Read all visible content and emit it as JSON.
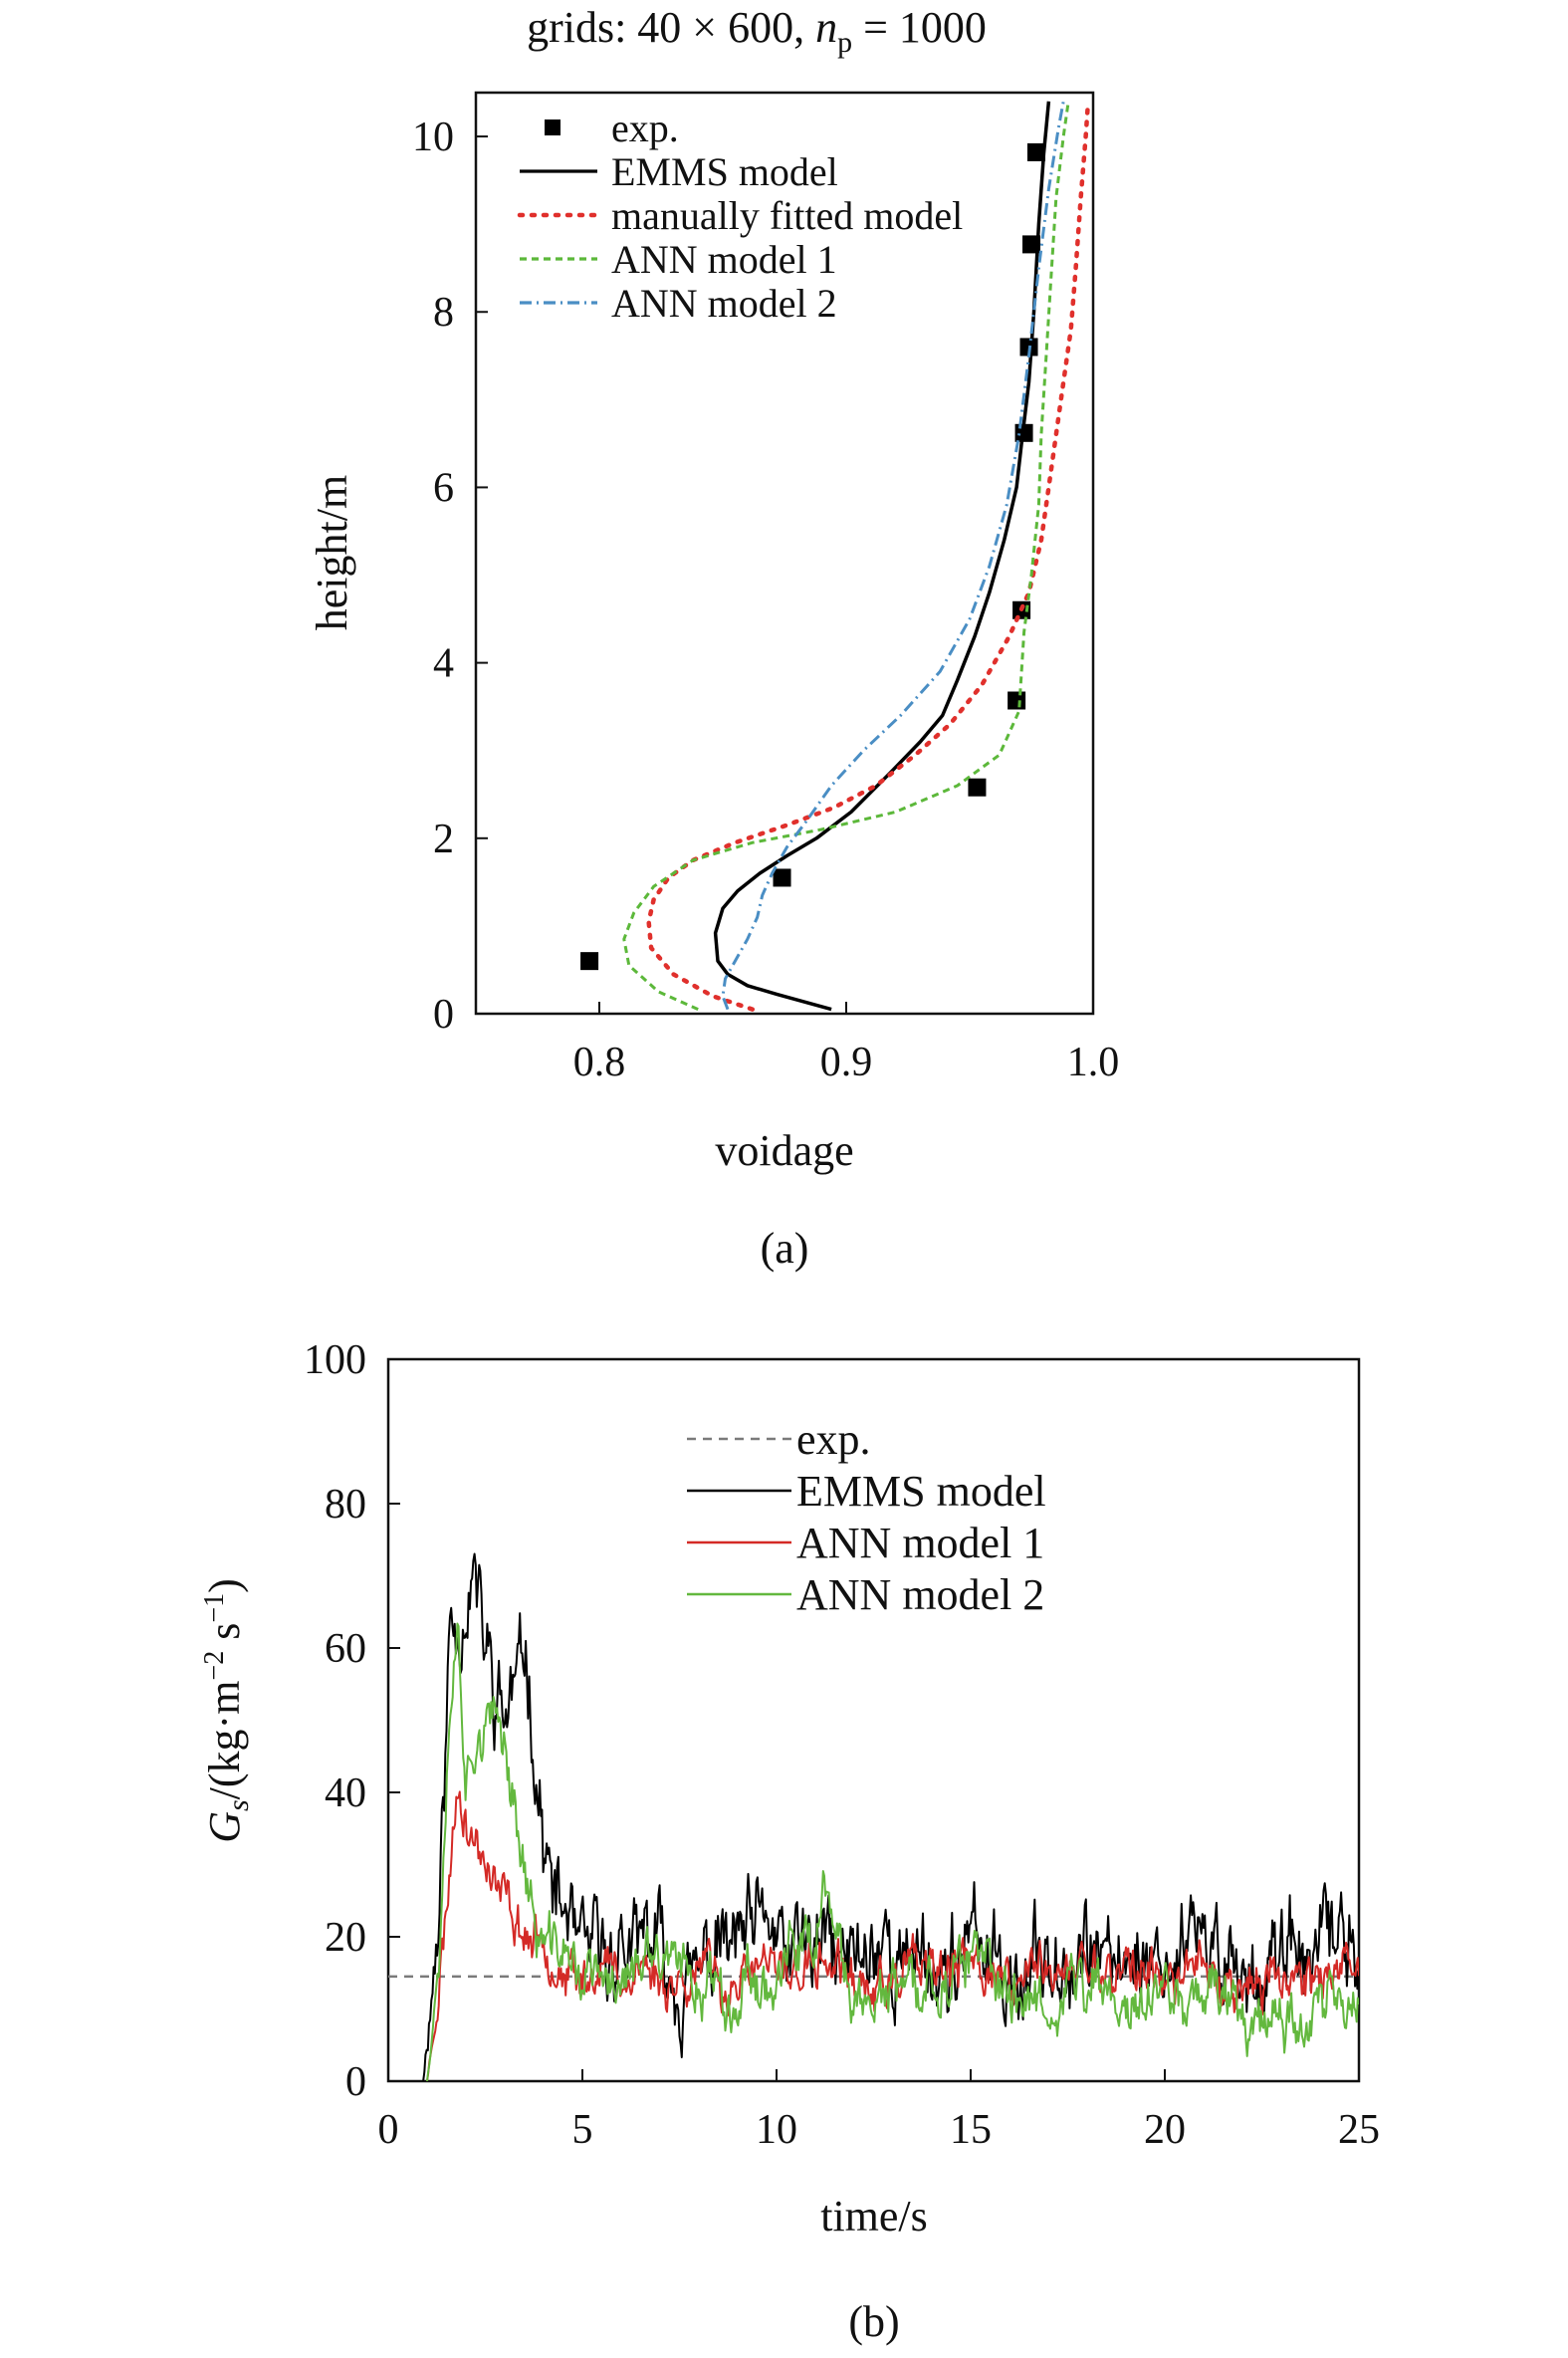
{
  "chart_data": [
    {
      "type": "line",
      "panel_label": "(a)",
      "title": {
        "pre": "grids: 40 × 600, ",
        "var": "n",
        "sub": "p",
        "post": " = 1000"
      },
      "xlabel": "voidage",
      "ylabel": "height/m",
      "xlim": [
        0.75,
        1.0
      ],
      "ylim": [
        0,
        10.5
      ],
      "xticks": [
        0.8,
        0.9,
        1.0
      ],
      "xtick_labels": [
        "0.8",
        "0.9",
        "1.0"
      ],
      "yticks": [
        0,
        2,
        4,
        6,
        8,
        10
      ],
      "ytick_labels": [
        "0",
        "2",
        "4",
        "6",
        "8",
        "10"
      ],
      "legend_position": "top-left",
      "series": [
        {
          "name": "exp.",
          "kind": "marker",
          "color": "#000000",
          "points": [
            [
              0.796,
              0.6
            ],
            [
              0.874,
              1.55
            ],
            [
              0.953,
              2.58
            ],
            [
              0.969,
              3.57
            ],
            [
              0.971,
              4.6
            ],
            [
              0.972,
              6.62
            ],
            [
              0.974,
              7.6
            ],
            [
              0.975,
              8.77
            ],
            [
              0.977,
              9.82
            ]
          ]
        },
        {
          "name": "EMMS model",
          "kind": "line",
          "color": "#000000",
          "dash": "",
          "points": [
            [
              0.894,
              0.05
            ],
            [
              0.885,
              0.12
            ],
            [
              0.872,
              0.22
            ],
            [
              0.86,
              0.32
            ],
            [
              0.852,
              0.45
            ],
            [
              0.848,
              0.6
            ],
            [
              0.847,
              0.92
            ],
            [
              0.85,
              1.2
            ],
            [
              0.856,
              1.4
            ],
            [
              0.865,
              1.6
            ],
            [
              0.876,
              1.8
            ],
            [
              0.888,
              2.0
            ],
            [
              0.902,
              2.3
            ],
            [
              0.918,
              2.75
            ],
            [
              0.93,
              3.1
            ],
            [
              0.939,
              3.4
            ],
            [
              0.945,
              3.8
            ],
            [
              0.952,
              4.3
            ],
            [
              0.958,
              4.8
            ],
            [
              0.964,
              5.4
            ],
            [
              0.969,
              6.0
            ],
            [
              0.971,
              6.5
            ],
            [
              0.974,
              7.2
            ],
            [
              0.976,
              8.0
            ],
            [
              0.978,
              9.0
            ],
            [
              0.98,
              9.8
            ],
            [
              0.982,
              10.4
            ]
          ]
        },
        {
          "name": "manually fitted model",
          "kind": "line",
          "color": "#e0302c",
          "dash": "3 9",
          "points": [
            [
              0.862,
              0.05
            ],
            [
              0.846,
              0.2
            ],
            [
              0.83,
              0.45
            ],
            [
              0.821,
              0.75
            ],
            [
              0.82,
              1.05
            ],
            [
              0.822,
              1.3
            ],
            [
              0.828,
              1.55
            ],
            [
              0.838,
              1.75
            ],
            [
              0.855,
              1.95
            ],
            [
              0.876,
              2.15
            ],
            [
              0.895,
              2.35
            ],
            [
              0.912,
              2.6
            ],
            [
              0.928,
              2.95
            ],
            [
              0.942,
              3.3
            ],
            [
              0.955,
              3.75
            ],
            [
              0.966,
              4.3
            ],
            [
              0.974,
              4.8
            ],
            [
              0.979,
              5.4
            ],
            [
              0.982,
              6.0
            ],
            [
              0.985,
              6.6
            ],
            [
              0.988,
              7.2
            ],
            [
              0.991,
              7.8
            ],
            [
              0.993,
              8.5
            ],
            [
              0.995,
              9.3
            ],
            [
              0.997,
              10.0
            ],
            [
              0.998,
              10.4
            ]
          ]
        },
        {
          "name": "ANN model 1",
          "kind": "line",
          "color": "#5cb83a",
          "dash": "7 5",
          "points": [
            [
              0.84,
              0.05
            ],
            [
              0.824,
              0.25
            ],
            [
              0.812,
              0.55
            ],
            [
              0.81,
              0.85
            ],
            [
              0.814,
              1.15
            ],
            [
              0.822,
              1.45
            ],
            [
              0.838,
              1.75
            ],
            [
              0.862,
              1.95
            ],
            [
              0.89,
              2.1
            ],
            [
              0.92,
              2.3
            ],
            [
              0.945,
              2.6
            ],
            [
              0.962,
              2.95
            ],
            [
              0.97,
              3.45
            ],
            [
              0.971,
              3.9
            ],
            [
              0.972,
              4.35
            ],
            [
              0.975,
              5.0
            ],
            [
              0.978,
              5.8
            ],
            [
              0.979,
              6.6
            ],
            [
              0.981,
              7.5
            ],
            [
              0.983,
              8.4
            ],
            [
              0.985,
              9.3
            ],
            [
              0.988,
              10.0
            ],
            [
              0.99,
              10.4
            ]
          ]
        },
        {
          "name": "ANN model 2",
          "kind": "line",
          "color": "#4a8ec4",
          "dash": "12 5 2 5",
          "points": [
            [
              0.852,
              0.05
            ],
            [
              0.85,
              0.2
            ],
            [
              0.851,
              0.4
            ],
            [
              0.855,
              0.6
            ],
            [
              0.86,
              0.85
            ],
            [
              0.864,
              1.1
            ],
            [
              0.866,
              1.35
            ],
            [
              0.87,
              1.6
            ],
            [
              0.876,
              1.9
            ],
            [
              0.884,
              2.2
            ],
            [
              0.894,
              2.6
            ],
            [
              0.907,
              3.0
            ],
            [
              0.922,
              3.4
            ],
            [
              0.938,
              3.9
            ],
            [
              0.95,
              4.5
            ],
            [
              0.958,
              5.1
            ],
            [
              0.965,
              5.8
            ],
            [
              0.97,
              6.6
            ],
            [
              0.974,
              7.5
            ],
            [
              0.978,
              8.5
            ],
            [
              0.982,
              9.4
            ],
            [
              0.986,
              10.1
            ],
            [
              0.988,
              10.4
            ]
          ]
        }
      ]
    },
    {
      "type": "line",
      "panel_label": "(b)",
      "xlabel": "time/s",
      "ylabel": {
        "var": "G",
        "sub": "s",
        "units": "/(kg·m",
        "units_exp": "−2",
        "units_mid": " s",
        "units_exp2": "−1",
        "units_end": ")"
      },
      "xlim": [
        0,
        25
      ],
      "ylim": [
        0,
        100
      ],
      "xticks": [
        0,
        5,
        10,
        15,
        20,
        25
      ],
      "xtick_labels": [
        "0",
        "5",
        "10",
        "15",
        "20",
        "25"
      ],
      "yticks": [
        0,
        20,
        40,
        60,
        80,
        100
      ],
      "ytick_labels": [
        "0",
        "20",
        "40",
        "60",
        "80",
        "100"
      ],
      "legend_position": "top-center",
      "series": [
        {
          "name": "exp.",
          "kind": "hline",
          "color": "#7a7a7a",
          "dash": "9 7",
          "value": 14.5
        },
        {
          "name": "EMMS model",
          "kind": "noisy",
          "color": "#000000",
          "dash": "",
          "seed": 11,
          "amp": 4.2,
          "smooth": 0.55,
          "start": 0.9,
          "anchors": [
            [
              0.9,
              0
            ],
            [
              1.3,
              25
            ],
            [
              1.6,
              66
            ],
            [
              1.9,
              65
            ],
            [
              2.2,
              73
            ],
            [
              2.5,
              62
            ],
            [
              2.8,
              56
            ],
            [
              3.1,
              54
            ],
            [
              3.5,
              62
            ],
            [
              3.8,
              46
            ],
            [
              4.1,
              31
            ],
            [
              4.4,
              23
            ],
            [
              4.8,
              20
            ],
            [
              5.2,
              17
            ],
            [
              6,
              18
            ],
            [
              7,
              17
            ],
            [
              8,
              17
            ],
            [
              9,
              17
            ],
            [
              10,
              17
            ],
            [
              11,
              17
            ],
            [
              12,
              17
            ],
            [
              13,
              17
            ],
            [
              14,
              17
            ],
            [
              15,
              17
            ],
            [
              16,
              18
            ],
            [
              17,
              17
            ],
            [
              18,
              17
            ],
            [
              19,
              17
            ],
            [
              20,
              17
            ],
            [
              21,
              17
            ],
            [
              22,
              16
            ],
            [
              23,
              17
            ],
            [
              24,
              17
            ],
            [
              25,
              19
            ]
          ]
        },
        {
          "name": "ANN model 1",
          "kind": "noisy",
          "color": "#d42a26",
          "dash": "",
          "seed": 23,
          "amp": 2.2,
          "smooth": 0.55,
          "start": 1.0,
          "anchors": [
            [
              1.0,
              0
            ],
            [
              1.3,
              12
            ],
            [
              1.6,
              30
            ],
            [
              1.8,
              42
            ],
            [
              2.1,
              34
            ],
            [
              2.4,
              30
            ],
            [
              2.8,
              25
            ],
            [
              3.2,
              21
            ],
            [
              3.6,
              19
            ],
            [
              4.2,
              17
            ],
            [
              5,
              16
            ],
            [
              6,
              15
            ],
            [
              7,
              15
            ],
            [
              8,
              15
            ],
            [
              9,
              15
            ],
            [
              10,
              15
            ],
            [
              11,
              15
            ],
            [
              12,
              15
            ],
            [
              13,
              15
            ],
            [
              14,
              15
            ],
            [
              15,
              15
            ],
            [
              16,
              15
            ],
            [
              17,
              15
            ],
            [
              18,
              15
            ],
            [
              19,
              15
            ],
            [
              20,
              15
            ],
            [
              21,
              15
            ],
            [
              22,
              15
            ],
            [
              23,
              15
            ],
            [
              24,
              15
            ],
            [
              25,
              14
            ]
          ]
        },
        {
          "name": "ANN model 2",
          "kind": "noisy",
          "color": "#63b83e",
          "dash": "",
          "seed": 37,
          "amp": 2.6,
          "smooth": 0.55,
          "start": 1.0,
          "anchors": [
            [
              1.0,
              0
            ],
            [
              1.3,
              18
            ],
            [
              1.6,
              50
            ],
            [
              1.8,
              61
            ],
            [
              2.0,
              40
            ],
            [
              2.3,
              44
            ],
            [
              2.6,
              47
            ],
            [
              2.9,
              48
            ],
            [
              3.2,
              40
            ],
            [
              3.5,
              28
            ],
            [
              3.8,
              21
            ],
            [
              4.2,
              19
            ],
            [
              5,
              16
            ],
            [
              6,
              14
            ],
            [
              7,
              14
            ],
            [
              8,
              14
            ],
            [
              9,
              14
            ],
            [
              10,
              14
            ],
            [
              11,
              15
            ],
            [
              11.2,
              25
            ],
            [
              11.5,
              15
            ],
            [
              12,
              13
            ],
            [
              13,
              13
            ],
            [
              14,
              13
            ],
            [
              15,
              13
            ],
            [
              16,
              13
            ],
            [
              17,
              13
            ],
            [
              18,
              13
            ],
            [
              19,
              13
            ],
            [
              20,
              13
            ],
            [
              21,
              13
            ],
            [
              22,
              13
            ],
            [
              23,
              12
            ],
            [
              24,
              12
            ],
            [
              25,
              12
            ]
          ]
        }
      ]
    }
  ]
}
